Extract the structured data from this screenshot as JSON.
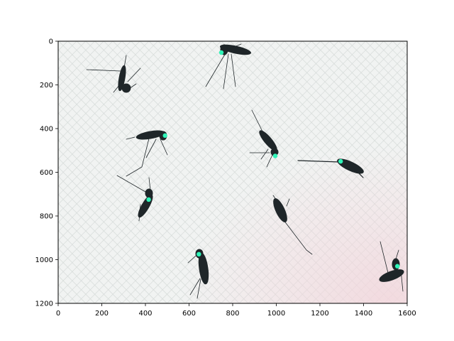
{
  "chart_data": {
    "type": "scatter",
    "title": "",
    "xlabel": "",
    "ylabel": "",
    "xlim": [
      0,
      1600
    ],
    "ylim": [
      1200,
      0
    ],
    "y_inverted": true,
    "grid": false,
    "background": "image: mosquito specimens on textured white paper",
    "x_ticks": [
      "0",
      "200",
      "400",
      "600",
      "800",
      "1000",
      "1200",
      "1400",
      "1600"
    ],
    "y_ticks": [
      "0",
      "200",
      "400",
      "600",
      "800",
      "1000",
      "1200"
    ],
    "series": [
      {
        "marker_color": "#2ff5b8",
        "points": [
          {
            "x": 748,
            "y": 52
          },
          {
            "x": 490,
            "y": 432
          },
          {
            "x": 995,
            "y": 525
          },
          {
            "x": 1295,
            "y": 550
          },
          {
            "x": 415,
            "y": 725
          },
          {
            "x": 645,
            "y": 975
          },
          {
            "x": 1555,
            "y": 1030
          }
        ]
      }
    ]
  }
}
